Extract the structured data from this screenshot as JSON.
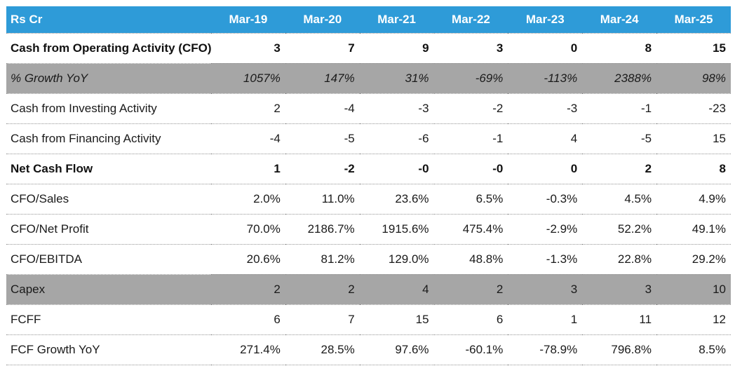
{
  "chart_data": {
    "type": "table",
    "corner_label": "Rs Cr",
    "columns": [
      "Mar-19",
      "Mar-20",
      "Mar-21",
      "Mar-22",
      "Mar-23",
      "Mar-24",
      "Mar-25"
    ],
    "rows": [
      {
        "label": "Cash from Operating Activity (CFO)",
        "style": "bold",
        "values": [
          "3",
          "7",
          "9",
          "3",
          "0",
          "8",
          "15"
        ]
      },
      {
        "label": "% Growth YoY",
        "style": "gray-italic",
        "values": [
          "1057%",
          "147%",
          "31%",
          "-69%",
          "-113%",
          "2388%",
          "98%"
        ]
      },
      {
        "label": "Cash from Investing Activity",
        "style": "normal",
        "values": [
          "2",
          "-4",
          "-3",
          "-2",
          "-3",
          "-1",
          "-23"
        ]
      },
      {
        "label": "Cash from Financing Activity",
        "style": "normal",
        "values": [
          "-4",
          "-5",
          "-6",
          "-1",
          "4",
          "-5",
          "15"
        ]
      },
      {
        "label": "Net Cash Flow",
        "style": "bold",
        "values": [
          "1",
          "-2",
          "-0",
          "-0",
          "0",
          "2",
          "8"
        ]
      },
      {
        "label": "CFO/Sales",
        "style": "normal",
        "values": [
          "2.0%",
          "11.0%",
          "23.6%",
          "6.5%",
          "-0.3%",
          "4.5%",
          "4.9%"
        ]
      },
      {
        "label": "CFO/Net Profit",
        "style": "normal",
        "values": [
          "70.0%",
          "2186.7%",
          "1915.6%",
          "475.4%",
          "-2.9%",
          "52.2%",
          "49.1%"
        ]
      },
      {
        "label": "CFO/EBITDA",
        "style": "normal",
        "values": [
          "20.6%",
          "81.2%",
          "129.0%",
          "48.8%",
          "-1.3%",
          "22.8%",
          "29.2%"
        ]
      },
      {
        "label": "Capex",
        "style": "gray",
        "values": [
          "2",
          "2",
          "4",
          "2",
          "3",
          "3",
          "10"
        ]
      },
      {
        "label": "FCFF",
        "style": "normal",
        "values": [
          "6",
          "7",
          "15",
          "6",
          "1",
          "11",
          "12"
        ]
      },
      {
        "label": "FCF Growth YoY",
        "style": "normal",
        "values": [
          "271.4%",
          "28.5%",
          "97.6%",
          "-60.1%",
          "-78.9%",
          "796.8%",
          "8.5%"
        ]
      }
    ],
    "layout": {
      "header_align": "center",
      "value_align": "right",
      "label_align": "left",
      "grid": "dotted-row-separators"
    }
  },
  "colors": {
    "header_bg": "#2e9bd8",
    "header_text": "#ffffff",
    "highlight_row_bg": "#a6a6a6",
    "body_text": "#1a1a1a",
    "dotted_border": "#949494"
  }
}
